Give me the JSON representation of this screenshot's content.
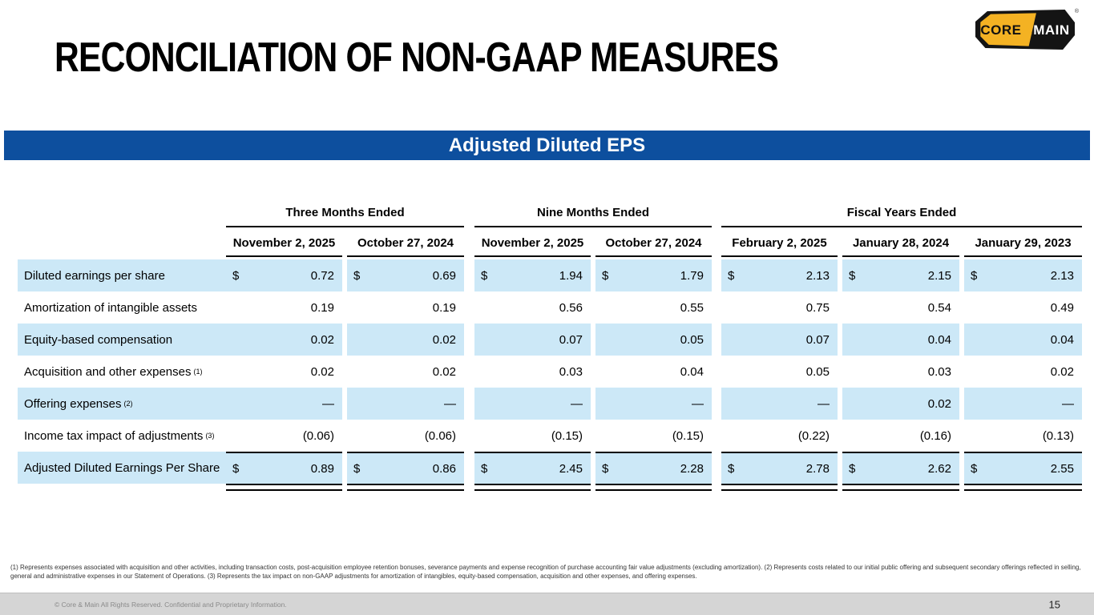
{
  "header": {
    "title": "RECONCILIATION OF NON-GAAP MEASURES"
  },
  "logo": {
    "core": "CORE",
    "amp": "&",
    "main": "MAIN",
    "registered": "®"
  },
  "banner": {
    "title": "Adjusted Diluted EPS"
  },
  "chart_data": {
    "type": "table",
    "title": "Adjusted Diluted EPS",
    "currency_symbol": "$",
    "column_groups": [
      {
        "label": "Three Months Ended",
        "columns": [
          "November 2, 2025",
          "October 27, 2024"
        ]
      },
      {
        "label": "Nine Months Ended",
        "columns": [
          "November 2, 2025",
          "October 27, 2024"
        ]
      },
      {
        "label": "Fiscal Years Ended",
        "columns": [
          "February 2, 2025",
          "January 28, 2024",
          "January 29, 2023"
        ]
      }
    ],
    "rows": [
      {
        "label": "Diluted earnings per share",
        "footnote_ref": "",
        "dollar": true,
        "total": false,
        "values": [
          "0.72",
          "0.69",
          "1.94",
          "1.79",
          "2.13",
          "2.15",
          "2.13"
        ]
      },
      {
        "label": "Amortization of intangible assets",
        "footnote_ref": "",
        "dollar": false,
        "total": false,
        "values": [
          "0.19",
          "0.19",
          "0.56",
          "0.55",
          "0.75",
          "0.54",
          "0.49"
        ]
      },
      {
        "label": "Equity-based compensation",
        "footnote_ref": "",
        "dollar": false,
        "total": false,
        "values": [
          "0.02",
          "0.02",
          "0.07",
          "0.05",
          "0.07",
          "0.04",
          "0.04"
        ]
      },
      {
        "label": "Acquisition and other expenses",
        "footnote_ref": "(1)",
        "dollar": false,
        "total": false,
        "values": [
          "0.02",
          "0.02",
          "0.03",
          "0.04",
          "0.05",
          "0.03",
          "0.02"
        ]
      },
      {
        "label": "Offering expenses",
        "footnote_ref": "(2)",
        "dollar": false,
        "total": false,
        "values": [
          "—",
          "—",
          "—",
          "—",
          "—",
          "0.02",
          "—"
        ]
      },
      {
        "label": "Income tax impact of adjustments",
        "footnote_ref": "(3)",
        "dollar": false,
        "total": false,
        "values": [
          "(0.06)",
          "(0.06)",
          "(0.15)",
          "(0.15)",
          "(0.22)",
          "(0.16)",
          "(0.13)"
        ]
      },
      {
        "label": "Adjusted Diluted Earnings Per Share",
        "footnote_ref": "",
        "dollar": true,
        "total": true,
        "values": [
          "0.89",
          "0.86",
          "2.45",
          "2.28",
          "2.78",
          "2.62",
          "2.55"
        ]
      }
    ]
  },
  "footnotes": {
    "text": "(1) Represents expenses associated with acquisition and other activities, including transaction costs, post-acquisition employee retention bonuses, severance payments and expense recognition of purchase accounting fair value adjustments (excluding amortization). (2) Represents costs related to our initial public offering and subsequent secondary offerings reflected in selling, general and administrative expenses in our Statement of Operations. (3) Represents the tax impact on non-GAAP adjustments for amortization of intangibles, equity-based compensation, acquisition and other expenses, and offering expenses."
  },
  "footer": {
    "copyright": "© Core & Main  All Rights Reserved. Confidential and Proprietary Information.",
    "page_number": "15"
  },
  "colors": {
    "banner_blue": "#0D4F9E",
    "row_highlight_blue": "#CCE8F7",
    "rule_black": "#000000",
    "logo_yellow": "#F4B223",
    "logo_black": "#141414",
    "footer_gray": "#D5D5D5"
  }
}
